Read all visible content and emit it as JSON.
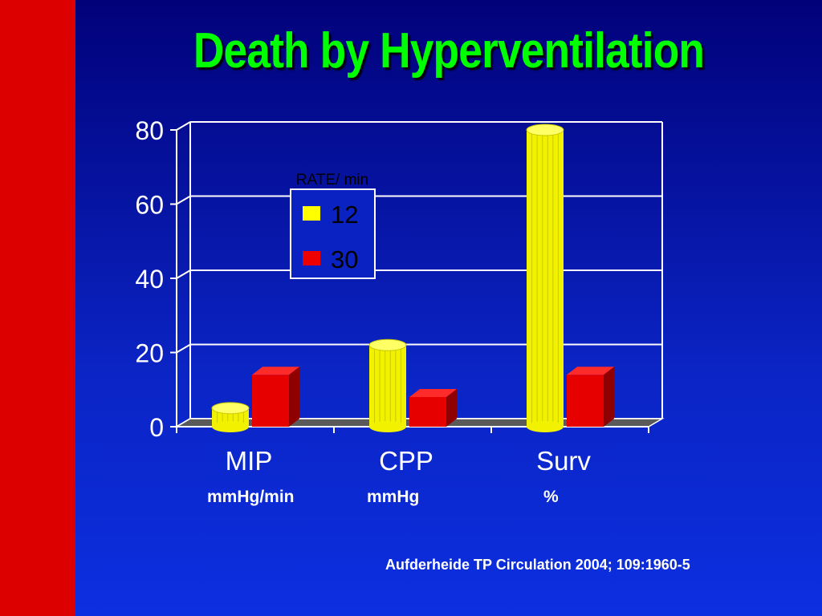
{
  "slide": {
    "title": "Death by Hyperventilation",
    "citation": "Aufderheide TP Circulation 2004; 109:1960-5"
  },
  "colors": {
    "background": "#0b24c4",
    "strip": "#dd0000",
    "title": "#00ff00",
    "series_12": "#ffff00",
    "series_30": "#ee0000"
  },
  "chart_data": {
    "type": "bar",
    "categories": [
      "MIP",
      "CPP",
      "Surv"
    ],
    "category_units": [
      "mmHg/min",
      "mmHg",
      "%"
    ],
    "legend_title": "RATE/ min",
    "series": [
      {
        "name": "12",
        "values": [
          5,
          22,
          80
        ]
      },
      {
        "name": "30",
        "values": [
          14,
          8,
          14
        ]
      }
    ],
    "ylim": [
      0,
      80
    ],
    "yticks": [
      "0",
      "20",
      "40",
      "60",
      "80"
    ],
    "grid": true,
    "legend_position": "top-left"
  }
}
